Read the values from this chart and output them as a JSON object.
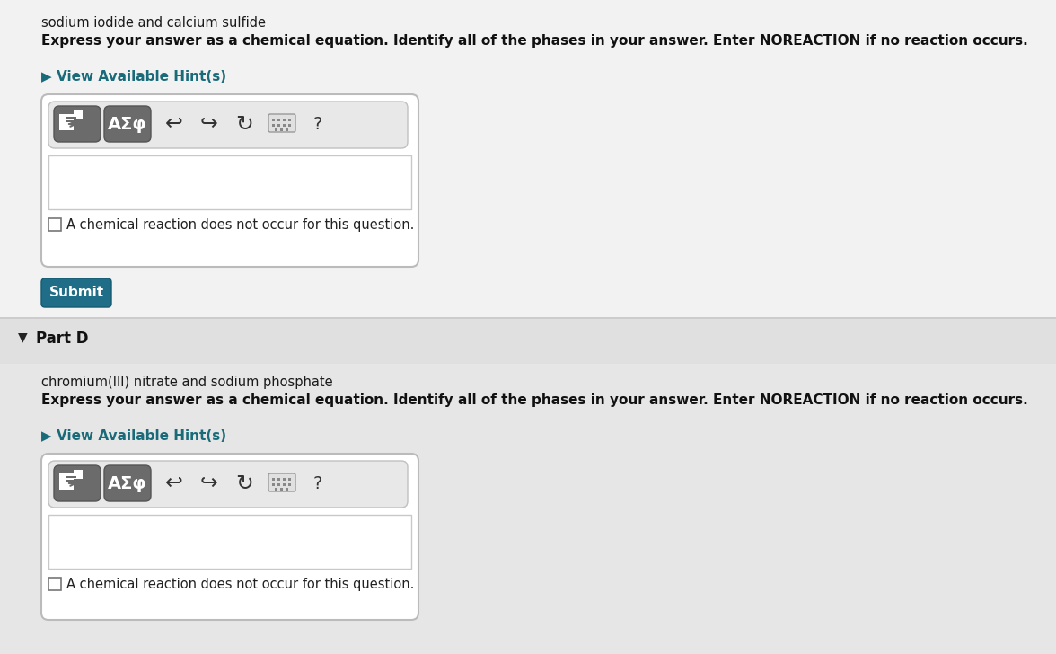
{
  "bg_top": "#efefef",
  "bg_bottom": "#e0e0e0",
  "bg_separator": "#cccccc",
  "white": "#ffffff",
  "dark_btn": "#6b6b6b",
  "dark_btn2": "#686868",
  "asf_btn": "#7a7a7a",
  "teal_btn": "#1f6d87",
  "border_box": "#bbbbbb",
  "border_input": "#c8c8c8",
  "border_toolbar": "#c0c0c0",
  "hint_color": "#1a6b7a",
  "text_dark": "#1a1a1a",
  "text_normal": "#222222",
  "checkbox_border": "#777777",
  "icon_color": "#333333",
  "question_color": "#333333",
  "part_c_subtitle": "sodium iodide and calcium sulfide",
  "part_c_instruction": "Express your answer as a chemical equation. Identify all of the phases in your answer. Enter NOREACTION if no reaction occurs.",
  "part_c_hint": "▶ View Available Hint(s)",
  "part_c_checkbox_text": "A chemical reaction does not occur for this question.",
  "submit_text": "Submit",
  "part_d_label": "Part D",
  "part_d_subtitle": "chromium(III) nitrate and sodium phosphate",
  "part_d_instruction": "Express your answer as a chemical equation. Identify all of the phases in your answer. Enter NOREACTION if no reaction occurs.",
  "part_d_hint": "▶ View Available Hint(s)",
  "part_d_checkbox_text": "A chemical reaction does not occur for this question.",
  "toolbar_symbols": "AΣφ",
  "question_mark": "?",
  "fig_width": 11.76,
  "fig_height": 7.28,
  "dpi": 100
}
